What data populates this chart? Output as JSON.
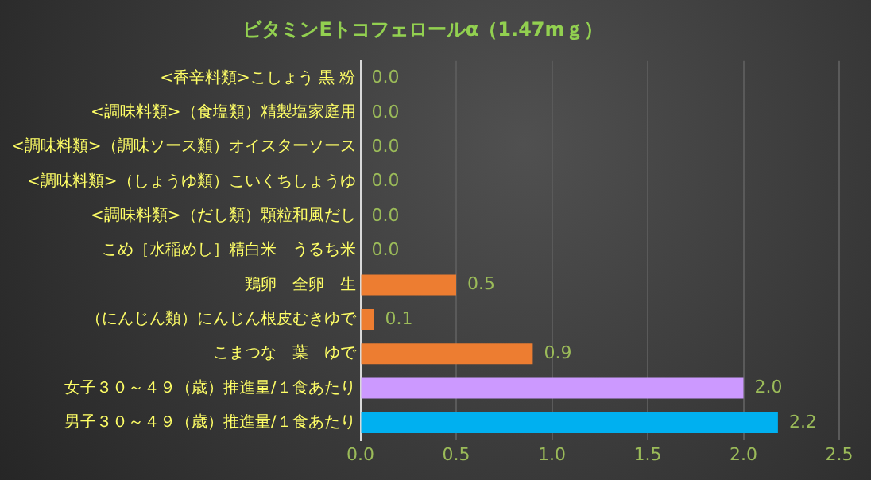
{
  "chart_data": {
    "type": "bar",
    "orientation": "horizontal",
    "title": "ビタミンEトコフェロールα（1.47mｇ）",
    "categories": [
      "<香辛料類>こしょう 黒 粉",
      "<調味料類>（食塩類）精製塩家庭用",
      "<調味料類>（調味ソース類）オイスターソース",
      "<調味料類>（しょうゆ類）こいくちしょうゆ",
      "<調味料類>（だし類）顆粒和風だし",
      "こめ［水稲めし］精白米　うるち米",
      "鶏卵　全卵　生",
      "（にんじん類）にんじん根皮むきゆで",
      "こまつな　葉　ゆで",
      "女子３０～４９（歳）推進量/１食あたり",
      "男子３０～４９（歳）推進量/１食あたり"
    ],
    "values": [
      0,
      0,
      0,
      0,
      0,
      0,
      0.5,
      0.07,
      0.9,
      2.0,
      2.18
    ],
    "value_labels": [
      "0.0",
      "0.0",
      "0.0",
      "0.0",
      "0.0",
      "0.0",
      "0.5",
      "0.1",
      "0.9",
      "2.0",
      "2.2"
    ],
    "colors": [
      "#ed7d31",
      "#ed7d31",
      "#ed7d31",
      "#ed7d31",
      "#ed7d31",
      "#ed7d31",
      "#ed7d31",
      "#ed7d31",
      "#ed7d31",
      "#cc99ff",
      "#00b0f0"
    ],
    "xlim": [
      0,
      2.5
    ],
    "xticks": [
      {
        "value": 0,
        "label": "0.0"
      },
      0.5,
      {
        "value": 1,
        "label": "1.0"
      },
      1.5,
      {
        "value": 2,
        "label": "2.0"
      },
      2.5
    ],
    "grid": "x",
    "legend": false
  }
}
